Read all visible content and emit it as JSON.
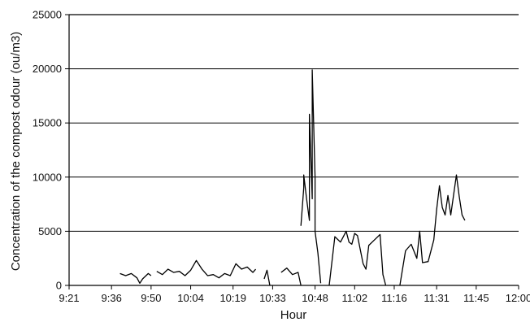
{
  "chart_data": {
    "type": "line",
    "title": "",
    "xlabel": "Hour",
    "ylabel": "Concentration of the compost odour (ou/m3)",
    "x_tick_labels": [
      "9:21",
      "9:36",
      "9:50",
      "10:04",
      "10:19",
      "10:33",
      "10:48",
      "11:02",
      "11:16",
      "11:31",
      "11:45",
      "12:00"
    ],
    "y_tick_labels": [
      "0",
      "5000",
      "10000",
      "15000",
      "20000",
      "25000"
    ],
    "ylim": [
      0,
      25000
    ],
    "xlim": [
      "9:21",
      "12:00"
    ],
    "grid": "horizontal",
    "legend": "none",
    "line_color": "#000000",
    "series": [
      {
        "segments": [
          [
            [
              "9:39",
              1100
            ],
            [
              "9:41",
              900
            ],
            [
              "9:43",
              1100
            ],
            [
              "9:45",
              700
            ],
            [
              "9:46",
              200
            ],
            [
              "9:47",
              600
            ],
            [
              "9:49",
              1100
            ],
            [
              "9:50",
              900
            ]
          ],
          [
            [
              "9:52",
              1300
            ],
            [
              "9:54",
              1000
            ],
            [
              "9:56",
              1500
            ],
            [
              "9:58",
              1200
            ],
            [
              "10:00",
              1300
            ],
            [
              "10:02",
              900
            ],
            [
              "10:04",
              1400
            ],
            [
              "10:06",
              2300
            ],
            [
              "10:08",
              1500
            ],
            [
              "10:10",
              900
            ],
            [
              "10:12",
              1000
            ],
            [
              "10:14",
              700
            ],
            [
              "10:16",
              1100
            ],
            [
              "10:18",
              900
            ],
            [
              "10:20",
              2000
            ],
            [
              "10:22",
              1500
            ],
            [
              "10:24",
              1700
            ],
            [
              "10:26",
              1200
            ],
            [
              "10:27",
              1500
            ]
          ],
          [
            [
              "10:30",
              600
            ],
            [
              "10:31",
              1400
            ],
            [
              "10:32",
              0
            ]
          ],
          [
            [
              "10:36",
              1200
            ],
            [
              "10:38",
              1600
            ],
            [
              "10:40",
              1000
            ],
            [
              "10:42",
              1200
            ],
            [
              "10:43",
              0
            ]
          ],
          [
            [
              "10:43",
              5500
            ],
            [
              "10:44",
              9000
            ],
            [
              "10:44",
              10200
            ],
            [
              "10:45",
              8000
            ],
            [
              "10:46",
              6000
            ],
            [
              "10:46",
              15800
            ],
            [
              "10:47",
              8000
            ],
            [
              "10:47",
              19900
            ],
            [
              "10:48",
              10000
            ],
            [
              "10:48",
              5000
            ],
            [
              "10:49",
              3000
            ],
            [
              "10:50",
              200
            ]
          ],
          [
            [
              "10:53",
              0
            ],
            [
              "10:55",
              4500
            ],
            [
              "10:57",
              4000
            ],
            [
              "10:59",
              5000
            ],
            [
              "11:00",
              4000
            ],
            [
              "11:01",
              3800
            ],
            [
              "11:02",
              4800
            ],
            [
              "11:03",
              4600
            ],
            [
              "11:05",
              2000
            ],
            [
              "11:06",
              1500
            ],
            [
              "11:07",
              3700
            ],
            [
              "11:09",
              4200
            ],
            [
              "11:11",
              4700
            ],
            [
              "11:12",
              1000
            ],
            [
              "11:13",
              0
            ]
          ],
          [
            [
              "11:18",
              0
            ],
            [
              "11:20",
              3200
            ],
            [
              "11:22",
              3800
            ],
            [
              "11:24",
              2500
            ],
            [
              "11:25",
              5000
            ],
            [
              "11:26",
              2100
            ],
            [
              "11:28",
              2200
            ],
            [
              "11:30",
              4200
            ],
            [
              "11:31",
              7000
            ],
            [
              "11:32",
              9200
            ],
            [
              "11:33",
              7200
            ],
            [
              "11:34",
              6500
            ],
            [
              "11:35",
              8300
            ],
            [
              "11:36",
              6500
            ],
            [
              "11:38",
              10200
            ],
            [
              "11:39",
              8200
            ],
            [
              "11:40",
              6500
            ],
            [
              "11:41",
              6000
            ]
          ]
        ]
      }
    ]
  }
}
